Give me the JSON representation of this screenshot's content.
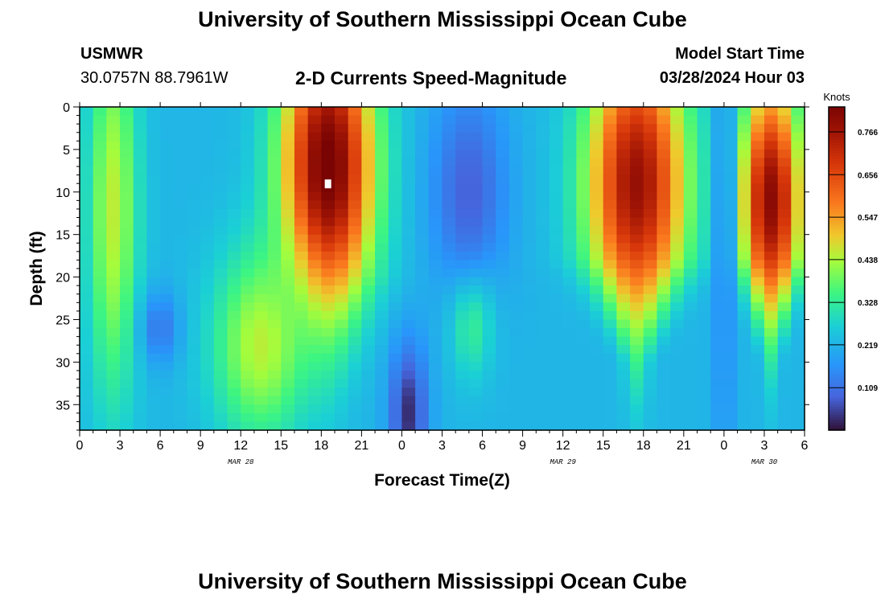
{
  "page": {
    "title": "University of Southern Mississippi Ocean Cube",
    "title_repeat": "University of Southern Mississippi Ocean Cube",
    "station_name": "USMWR",
    "coordinates": "30.0757N  88.7961W",
    "model_start_label": "Model Start Time",
    "model_start_time": "03/28/2024 Hour 03"
  },
  "chart_data": {
    "type": "heatmap",
    "title": "2-D Currents Speed-Magnitude",
    "xlabel": "Forecast Time(Z)",
    "ylabel": "Depth (ft)",
    "x_range_hours": [
      0,
      54
    ],
    "x_tick_labels": [
      "0",
      "3",
      "6",
      "9",
      "12",
      "15",
      "18",
      "21",
      "0",
      "3",
      "6",
      "9",
      "12",
      "15",
      "18",
      "21",
      "0",
      "3",
      "6"
    ],
    "date_labels": [
      {
        "label": "MAR 28",
        "hour": 12
      },
      {
        "label": "MAR 29",
        "hour": 36
      },
      {
        "label": "MAR 30",
        "hour": 51
      }
    ],
    "y_range": [
      0,
      38
    ],
    "y_ticks": [
      0,
      5,
      10,
      15,
      20,
      25,
      30,
      35
    ],
    "y_tick_labels": [
      "0",
      "5",
      "10",
      "15",
      "20",
      "25",
      "30",
      "35"
    ],
    "colorbar": {
      "unit_label": "Knots",
      "min": 0.0,
      "max": 0.83,
      "ticks": [
        0.109,
        0.219,
        0.328,
        0.438,
        0.547,
        0.656,
        0.766
      ],
      "tick_labels": [
        "0.109",
        "0.219",
        "0.328",
        "0.438",
        "0.547",
        "0.656",
        "0.766"
      ]
    },
    "marker": {
      "hour": 18.5,
      "depth": 9
    },
    "field": {
      "grid": {
        "time_step_hours": 1,
        "depth_step_ft": 1
      },
      "background_knots": 0.22,
      "features": [
        {
          "type": "high",
          "hour": 18.5,
          "depth": 7,
          "sigma_hour": 2.4,
          "sigma_depth": 12,
          "peak": 0.85,
          "taper": "to_bottom"
        },
        {
          "type": "high",
          "hour": 41.5,
          "depth": 9,
          "sigma_hour": 2.6,
          "sigma_depth": 12,
          "peak": 0.78,
          "taper": "to_depth_30"
        },
        {
          "type": "high",
          "hour": 51.5,
          "depth": 11,
          "sigma_hour": 1.6,
          "sigma_depth": 10,
          "peak": 0.8,
          "taper": "to_depth_30"
        },
        {
          "type": "moderate",
          "hour": 2.5,
          "depth": 12,
          "sigma_hour": 1.3,
          "sigma_depth": 16,
          "peak": 0.45
        },
        {
          "type": "moderate",
          "hour": 29.2,
          "depth": 24,
          "sigma_hour": 1.1,
          "sigma_depth": 5,
          "peak": 0.4
        },
        {
          "type": "moderate",
          "hour": 13.5,
          "depth": 28,
          "sigma_hour": 2.5,
          "sigma_depth": 8,
          "peak": 0.45
        },
        {
          "type": "low",
          "hour": 29.0,
          "depth": 10,
          "sigma_hour": 2.0,
          "sigma_depth": 9,
          "peak": 0.08
        },
        {
          "type": "low",
          "hour": 24.5,
          "depth": 36,
          "sigma_hour": 1.0,
          "sigma_depth": 6,
          "peak": 0.03
        },
        {
          "type": "low",
          "hour": 6.0,
          "depth": 26,
          "sigma_hour": 1.0,
          "sigma_depth": 3,
          "peak": 0.12
        },
        {
          "type": "low",
          "hour": 48.0,
          "depth": 18,
          "sigma_hour": 0.6,
          "sigma_depth": 25,
          "peak": 0.15
        }
      ]
    }
  }
}
